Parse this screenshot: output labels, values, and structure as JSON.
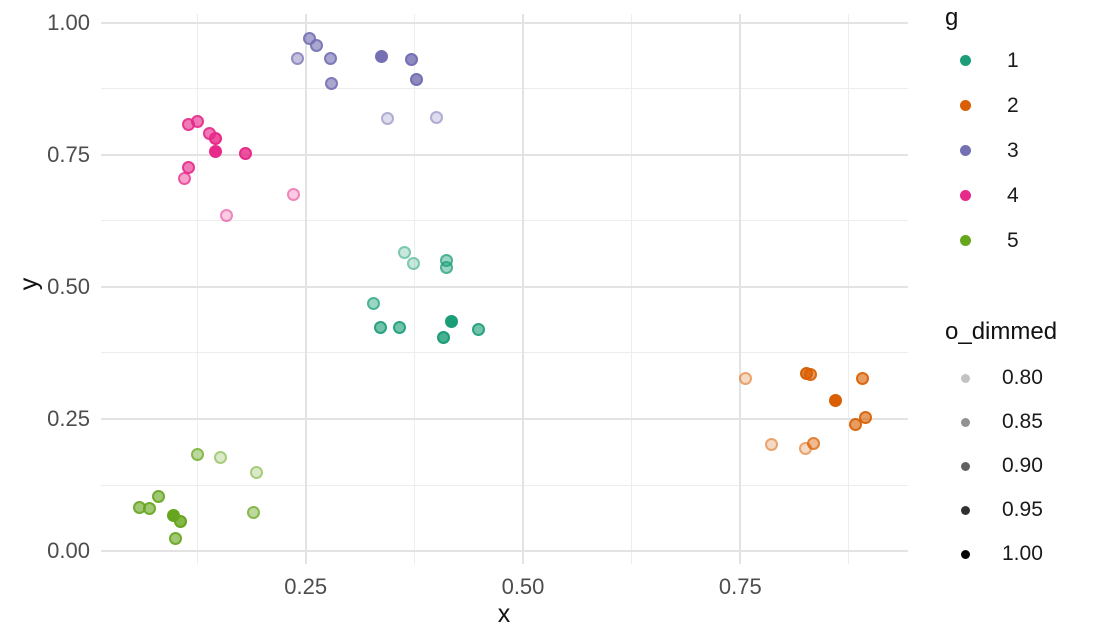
{
  "chart_data": {
    "type": "scatter",
    "title": "",
    "xlabel": "x",
    "ylabel": "y",
    "grid": "major+minor",
    "legend_position": "right",
    "x_range": [
      0.0145,
      0.9429
    ],
    "y_range": [
      -0.0246,
      1.017
    ],
    "x_ticks": {
      "major": [
        0.25,
        0.5,
        0.75
      ],
      "major_labels": [
        "0.25",
        "0.50",
        "0.75"
      ],
      "minor": [
        0.125,
        0.375,
        0.625,
        0.875
      ]
    },
    "y_ticks": {
      "major": [
        0.0,
        0.25,
        0.5,
        0.75,
        1.0
      ],
      "major_labels": [
        "0.00",
        "0.25",
        "0.50",
        "0.75",
        "1.00"
      ],
      "minor": [
        0.125,
        0.375,
        0.625,
        0.875
      ]
    },
    "alpha_scale": {
      "name": "o_dimmed",
      "domain": [
        0.8,
        1.0
      ],
      "range": [
        0.24,
        1.0
      ]
    },
    "series": [
      {
        "name": "1",
        "color": "#1B9E77",
        "points": [
          [
            0.364,
            0.566,
            0.8
          ],
          [
            0.374,
            0.545,
            0.8
          ],
          [
            0.412,
            0.55,
            0.85
          ],
          [
            0.412,
            0.537,
            0.85
          ],
          [
            0.328,
            0.468,
            0.85
          ],
          [
            0.336,
            0.423,
            0.9
          ],
          [
            0.358,
            0.423,
            0.9
          ],
          [
            0.408,
            0.405,
            0.95
          ],
          [
            0.449,
            0.42,
            0.9
          ],
          [
            0.418,
            0.434,
            1.0
          ]
        ]
      },
      {
        "name": "2",
        "color": "#D95F02",
        "points": [
          [
            0.756,
            0.326,
            0.8
          ],
          [
            0.831,
            0.335,
            0.9
          ],
          [
            0.826,
            0.337,
            0.95
          ],
          [
            0.89,
            0.326,
            0.9
          ],
          [
            0.894,
            0.252,
            0.9
          ],
          [
            0.882,
            0.239,
            0.9
          ],
          [
            0.786,
            0.201,
            0.8
          ],
          [
            0.834,
            0.203,
            0.85
          ],
          [
            0.825,
            0.194,
            0.8
          ],
          [
            0.86,
            0.285,
            1.0
          ]
        ]
      },
      {
        "name": "3",
        "color": "#7570B3",
        "points": [
          [
            0.254,
            0.97,
            0.9
          ],
          [
            0.262,
            0.958,
            0.9
          ],
          [
            0.241,
            0.932,
            0.85
          ],
          [
            0.279,
            0.932,
            0.9
          ],
          [
            0.372,
            0.93,
            0.95
          ],
          [
            0.28,
            0.886,
            0.9
          ],
          [
            0.378,
            0.893,
            0.95
          ],
          [
            0.344,
            0.819,
            0.8
          ],
          [
            0.4,
            0.821,
            0.8
          ],
          [
            0.337,
            0.936,
            1.0
          ]
        ]
      },
      {
        "name": "4",
        "color": "#E7298A",
        "points": [
          [
            0.115,
            0.807,
            0.9
          ],
          [
            0.125,
            0.814,
            0.9
          ],
          [
            0.139,
            0.791,
            0.9
          ],
          [
            0.146,
            0.782,
            0.95
          ],
          [
            0.181,
            0.753,
            0.95
          ],
          [
            0.115,
            0.727,
            0.9
          ],
          [
            0.11,
            0.705,
            0.85
          ],
          [
            0.236,
            0.675,
            0.8
          ],
          [
            0.159,
            0.636,
            0.8
          ],
          [
            0.146,
            0.756,
            1.0
          ]
        ]
      },
      {
        "name": "5",
        "color": "#66A61E",
        "points": [
          [
            0.125,
            0.183,
            0.85
          ],
          [
            0.152,
            0.177,
            0.8
          ],
          [
            0.193,
            0.149,
            0.8
          ],
          [
            0.081,
            0.103,
            0.9
          ],
          [
            0.059,
            0.083,
            0.9
          ],
          [
            0.07,
            0.08,
            0.9
          ],
          [
            0.106,
            0.056,
            0.95
          ],
          [
            0.19,
            0.073,
            0.85
          ],
          [
            0.1,
            0.023,
            0.9
          ],
          [
            0.098,
            0.068,
            1.0
          ]
        ]
      }
    ]
  },
  "legend": {
    "color_legend": {
      "title": "g",
      "items": [
        {
          "label": "1",
          "color": "#1B9E77"
        },
        {
          "label": "2",
          "color": "#D95F02"
        },
        {
          "label": "3",
          "color": "#7570B3"
        },
        {
          "label": "4",
          "color": "#E7298A"
        },
        {
          "label": "5",
          "color": "#66A61E"
        }
      ]
    },
    "alpha_legend": {
      "title": "o_dimmed",
      "items": [
        {
          "label": "0.80",
          "alpha": 0.24
        },
        {
          "label": "0.85",
          "alpha": 0.43
        },
        {
          "label": "0.90",
          "alpha": 0.62
        },
        {
          "label": "0.95",
          "alpha": 0.81
        },
        {
          "label": "1.00",
          "alpha": 1.0
        }
      ]
    }
  }
}
